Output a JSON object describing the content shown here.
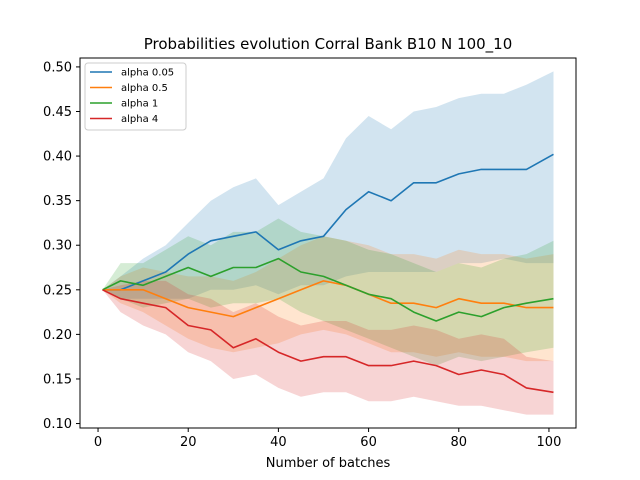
{
  "chart_data": {
    "type": "line",
    "title": "Probabilities evolution Corral Bank B10 N 100_10",
    "xlabel": "Number of batches",
    "ylabel": "",
    "xlim": [
      -4,
      106
    ],
    "ylim": [
      0.095,
      0.51
    ],
    "xticks": [
      0,
      20,
      40,
      60,
      80,
      100
    ],
    "yticks": [
      0.1,
      0.15,
      0.2,
      0.25,
      0.3,
      0.35,
      0.4,
      0.45,
      0.5
    ],
    "grid": false,
    "legend_position": "top-left",
    "series": [
      {
        "name": "alpha 0.05",
        "color": "#1f77b4",
        "x": [
          1,
          5,
          10,
          15,
          20,
          25,
          30,
          35,
          40,
          45,
          50,
          55,
          60,
          65,
          70,
          75,
          80,
          85,
          90,
          95,
          101
        ],
        "values": [
          0.25,
          0.25,
          0.26,
          0.27,
          0.29,
          0.305,
          0.31,
          0.315,
          0.295,
          0.305,
          0.31,
          0.34,
          0.36,
          0.35,
          0.37,
          0.37,
          0.38,
          0.385,
          0.385,
          0.385,
          0.402
        ],
        "lower": [
          0.25,
          0.24,
          0.24,
          0.24,
          0.24,
          0.25,
          0.25,
          0.255,
          0.245,
          0.255,
          0.255,
          0.265,
          0.27,
          0.27,
          0.27,
          0.27,
          0.28,
          0.28,
          0.285,
          0.28,
          0.28
        ],
        "upper": [
          0.25,
          0.265,
          0.285,
          0.3,
          0.325,
          0.35,
          0.365,
          0.375,
          0.345,
          0.36,
          0.375,
          0.42,
          0.445,
          0.43,
          0.45,
          0.455,
          0.465,
          0.47,
          0.47,
          0.48,
          0.495
        ]
      },
      {
        "name": "alpha 0.5",
        "color": "#ff7f0e",
        "x": [
          1,
          5,
          10,
          15,
          20,
          25,
          30,
          35,
          40,
          45,
          50,
          55,
          60,
          65,
          70,
          75,
          80,
          85,
          90,
          95,
          101
        ],
        "values": [
          0.25,
          0.25,
          0.25,
          0.24,
          0.23,
          0.225,
          0.22,
          0.23,
          0.24,
          0.25,
          0.26,
          0.255,
          0.245,
          0.235,
          0.235,
          0.23,
          0.24,
          0.235,
          0.235,
          0.23,
          0.23
        ],
        "lower": [
          0.25,
          0.235,
          0.225,
          0.21,
          0.195,
          0.185,
          0.18,
          0.185,
          0.19,
          0.2,
          0.205,
          0.2,
          0.19,
          0.18,
          0.18,
          0.175,
          0.18,
          0.175,
          0.175,
          0.17,
          0.17
        ],
        "upper": [
          0.25,
          0.265,
          0.275,
          0.27,
          0.265,
          0.265,
          0.26,
          0.27,
          0.285,
          0.3,
          0.31,
          0.305,
          0.3,
          0.29,
          0.29,
          0.285,
          0.295,
          0.29,
          0.29,
          0.285,
          0.29
        ]
      },
      {
        "name": "alpha 1",
        "color": "#2ca02c",
        "x": [
          1,
          5,
          10,
          15,
          20,
          25,
          30,
          35,
          40,
          45,
          50,
          55,
          60,
          65,
          70,
          75,
          80,
          85,
          90,
          95,
          101
        ],
        "values": [
          0.25,
          0.26,
          0.255,
          0.265,
          0.275,
          0.265,
          0.275,
          0.275,
          0.285,
          0.27,
          0.265,
          0.255,
          0.245,
          0.24,
          0.225,
          0.215,
          0.225,
          0.22,
          0.23,
          0.235,
          0.24
        ],
        "lower": [
          0.25,
          0.24,
          0.23,
          0.235,
          0.24,
          0.23,
          0.235,
          0.235,
          0.24,
          0.225,
          0.215,
          0.205,
          0.195,
          0.185,
          0.175,
          0.165,
          0.175,
          0.17,
          0.175,
          0.18,
          0.185
        ],
        "upper": [
          0.25,
          0.28,
          0.28,
          0.295,
          0.31,
          0.3,
          0.315,
          0.315,
          0.33,
          0.315,
          0.31,
          0.305,
          0.295,
          0.29,
          0.28,
          0.27,
          0.28,
          0.275,
          0.285,
          0.29,
          0.305
        ]
      },
      {
        "name": "alpha 4",
        "color": "#d62728",
        "x": [
          1,
          5,
          10,
          15,
          20,
          25,
          30,
          35,
          40,
          45,
          50,
          55,
          60,
          65,
          70,
          75,
          80,
          85,
          90,
          95,
          101
        ],
        "values": [
          0.25,
          0.24,
          0.235,
          0.23,
          0.21,
          0.205,
          0.185,
          0.195,
          0.18,
          0.17,
          0.175,
          0.175,
          0.165,
          0.165,
          0.17,
          0.165,
          0.155,
          0.16,
          0.155,
          0.14,
          0.135
        ],
        "lower": [
          0.25,
          0.225,
          0.21,
          0.2,
          0.18,
          0.17,
          0.15,
          0.155,
          0.14,
          0.13,
          0.135,
          0.135,
          0.125,
          0.125,
          0.13,
          0.125,
          0.12,
          0.12,
          0.115,
          0.11,
          0.11
        ],
        "upper": [
          0.25,
          0.255,
          0.26,
          0.26,
          0.245,
          0.24,
          0.225,
          0.235,
          0.22,
          0.21,
          0.215,
          0.215,
          0.205,
          0.205,
          0.21,
          0.205,
          0.195,
          0.2,
          0.195,
          0.175,
          0.17
        ]
      }
    ]
  }
}
